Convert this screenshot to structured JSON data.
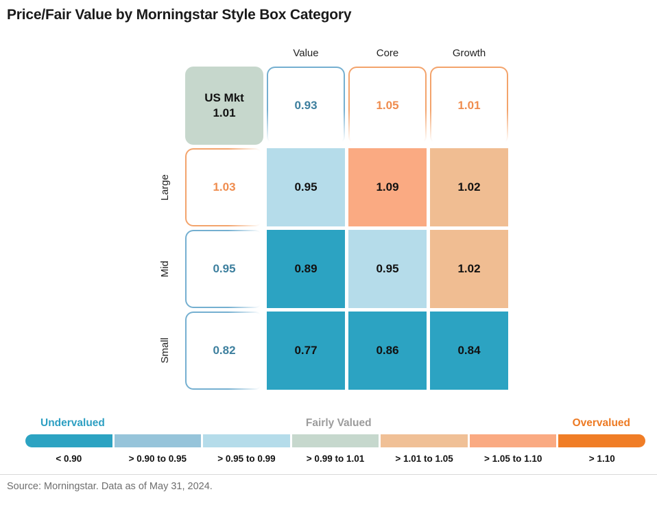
{
  "title": "Price/Fair Value by Morningstar Style Box Category",
  "source_note": "Source: Morningstar. Data as of May 31, 2024.",
  "chart_data": {
    "type": "heatmap",
    "title": "Price/Fair Value by Morningstar Style Box Category",
    "columns": [
      "Value",
      "Core",
      "Growth"
    ],
    "rows": [
      "Large",
      "Mid",
      "Small"
    ],
    "us_market": {
      "label": "US Mkt",
      "value": 1.01
    },
    "column_summaries": [
      0.93,
      1.05,
      1.01
    ],
    "row_summaries": [
      1.03,
      0.95,
      0.82
    ],
    "values": [
      [
        0.95,
        1.09,
        1.02
      ],
      [
        0.89,
        0.95,
        1.02
      ],
      [
        0.77,
        0.86,
        0.84
      ]
    ],
    "legend": {
      "position": "bottom",
      "zones": [
        {
          "label": "Undervalued",
          "color": "#2D9FC2"
        },
        {
          "label": "Fairly Valued",
          "color": "#9C9C9C"
        },
        {
          "label": "Overvalued",
          "color": "#ED7A23"
        }
      ],
      "bins": [
        {
          "label": "< 0.90",
          "color": "#2CA3C2"
        },
        {
          "label": "> 0.90 to 0.95",
          "color": "#96C4DA"
        },
        {
          "label": "> 0.95 to 0.99",
          "color": "#B5DCEA"
        },
        {
          "label": "> 0.99 to 1.01",
          "color": "#C6D8CD"
        },
        {
          "label": "> 1.01 to 1.05",
          "color": "#F0C096"
        },
        {
          "label": "> 1.05 to 1.10",
          "color": "#FAAA82"
        },
        {
          "label": "> 1.10",
          "color": "#F07D26"
        }
      ]
    }
  },
  "styles": {
    "us_market_bg": "#C6D7CC",
    "cell_bg": [
      [
        "#B5DCEA",
        "#FAAA82",
        "#F0BD92"
      ],
      [
        "#2CA3C2",
        "#B5DCEA",
        "#F0BD92"
      ],
      [
        "#2CA3C2",
        "#2CA3C2",
        "#2CA3C2"
      ]
    ],
    "col_summary_border": [
      "#74AFD0",
      "#F3A36B",
      "#F3A36B"
    ],
    "col_summary_text": [
      "#3D7F9E",
      "#EF8C4E",
      "#EF8C4E"
    ],
    "row_summary_border": [
      "#F3A36B",
      "#74AFD0",
      "#74AFD0"
    ],
    "row_summary_text": [
      "#EF8C4E",
      "#3D7F9E",
      "#3D7F9E"
    ]
  }
}
